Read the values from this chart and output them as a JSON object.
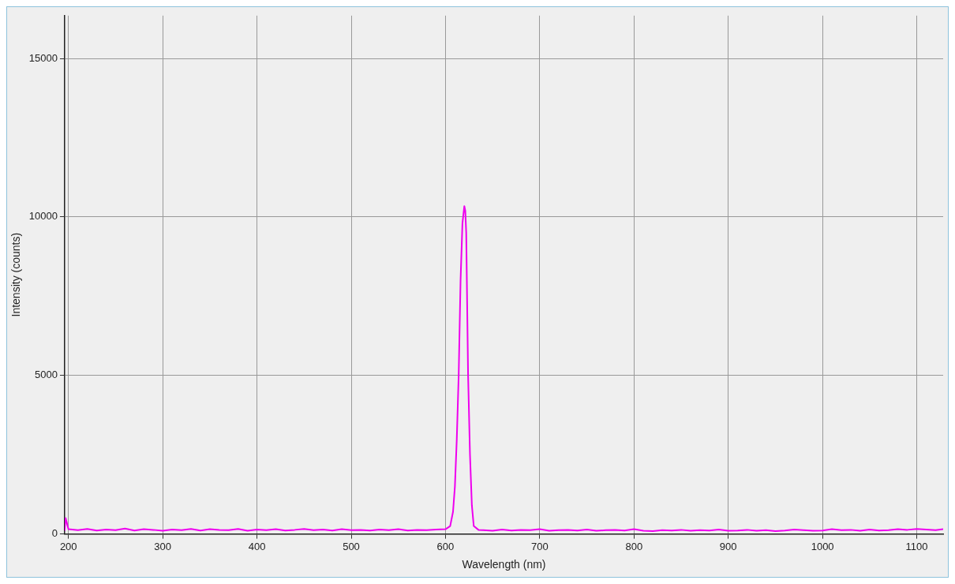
{
  "chart_data": {
    "type": "line",
    "xlabel": "Wavelength (nm)",
    "ylabel": "Intensity (counts)",
    "series": [
      {
        "color": "#ee00ee",
        "x": [
          196,
          197,
          200,
          210,
          220,
          230,
          240,
          250,
          260,
          270,
          280,
          290,
          300,
          310,
          320,
          330,
          340,
          350,
          360,
          370,
          380,
          390,
          400,
          410,
          420,
          430,
          440,
          450,
          460,
          470,
          480,
          490,
          500,
          510,
          520,
          530,
          540,
          550,
          560,
          570,
          580,
          590,
          600,
          605,
          608,
          610,
          612,
          614,
          616,
          618,
          620,
          621,
          622,
          624,
          626,
          628,
          630,
          635,
          640,
          650,
          660,
          670,
          680,
          690,
          700,
          710,
          720,
          730,
          740,
          750,
          760,
          770,
          780,
          790,
          800,
          810,
          820,
          830,
          840,
          850,
          860,
          870,
          880,
          890,
          900,
          910,
          920,
          930,
          940,
          950,
          960,
          970,
          980,
          990,
          1000,
          1010,
          1020,
          1030,
          1040,
          1050,
          1060,
          1070,
          1080,
          1090,
          1100,
          1110,
          1120,
          1128
        ],
        "values": [
          100,
          500,
          150,
          120,
          160,
          110,
          140,
          120,
          170,
          110,
          150,
          130,
          100,
          140,
          120,
          160,
          110,
          150,
          130,
          120,
          160,
          100,
          140,
          120,
          150,
          110,
          130,
          160,
          120,
          140,
          110,
          150,
          120,
          130,
          110,
          140,
          120,
          150,
          110,
          130,
          120,
          140,
          150,
          250,
          700,
          1500,
          3000,
          5000,
          8000,
          9800,
          10340,
          10200,
          9500,
          5000,
          2500,
          900,
          250,
          130,
          120,
          100,
          140,
          110,
          130,
          120,
          150,
          100,
          120,
          130,
          110,
          140,
          100,
          120,
          130,
          110,
          150,
          100,
          90,
          120,
          110,
          130,
          100,
          120,
          110,
          140,
          100,
          110,
          130,
          100,
          120,
          90,
          110,
          140,
          120,
          100,
          110,
          150,
          120,
          130,
          100,
          140,
          110,
          120,
          150,
          130,
          160,
          140,
          120,
          150
        ]
      }
    ],
    "xlim": [
      196,
      1128
    ],
    "ylim": [
      0,
      16350
    ],
    "xticks": [
      200,
      300,
      400,
      500,
      600,
      700,
      800,
      900,
      1000,
      1100
    ],
    "yticks": [
      0,
      5000,
      10000,
      15000
    ],
    "grid": true,
    "legend": false,
    "marker": "none",
    "line_style": "solid"
  }
}
